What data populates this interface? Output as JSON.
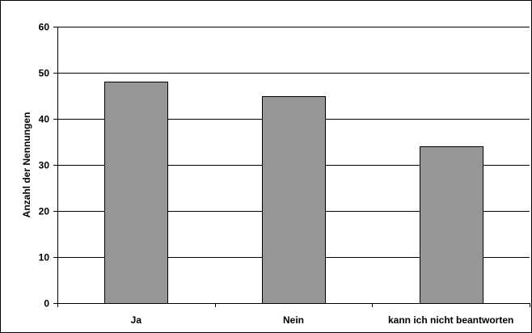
{
  "chart_data": {
    "type": "bar",
    "title": "",
    "xlabel": "",
    "ylabel": "Anzahl der Nennungen",
    "categories": [
      "Ja",
      "Nein",
      "kann ich nicht beantworten"
    ],
    "values": [
      48,
      45,
      34
    ],
    "ylim": [
      0,
      60
    ],
    "yticks": [
      0,
      10,
      20,
      30,
      40,
      50,
      60
    ],
    "grid": true,
    "legend": "none",
    "colors": {
      "bar": "#969696",
      "bar_outline": "#000000",
      "grid": "#000000"
    }
  }
}
